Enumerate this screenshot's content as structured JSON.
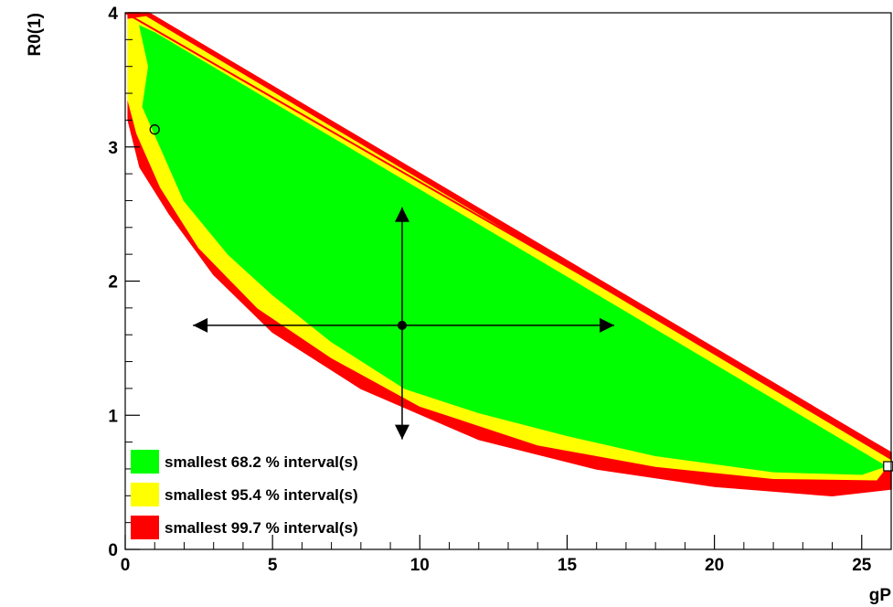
{
  "chart_data": {
    "type": "contour",
    "xlabel": "gP",
    "ylabel": "R0(1)",
    "xlim": [
      0,
      26
    ],
    "ylim": [
      0,
      4
    ],
    "x_ticks": [
      "0",
      "5",
      "10",
      "15",
      "20",
      "25"
    ],
    "y_ticks": [
      "0",
      "1",
      "2",
      "3",
      "4"
    ],
    "grid": false,
    "legend_position": "bottom-left",
    "colors": {
      "interval_68": "#00ff00",
      "interval_95": "#ffff00",
      "interval_99": "#ff0000"
    },
    "regions": [
      {
        "name": "smallest 99.7 % interval(s)",
        "color": "#ff0000",
        "polygon": [
          [
            0.1,
            4.0
          ],
          [
            0.8,
            4.0
          ],
          [
            26,
            0.72
          ],
          [
            26,
            0.45
          ],
          [
            24,
            0.4
          ],
          [
            20,
            0.47
          ],
          [
            16,
            0.6
          ],
          [
            12,
            0.82
          ],
          [
            8,
            1.2
          ],
          [
            5,
            1.62
          ],
          [
            3,
            2.05
          ],
          [
            1.5,
            2.5
          ],
          [
            0.5,
            2.85
          ],
          [
            0.1,
            3.2
          ]
        ]
      },
      {
        "name": "smallest 95.4 % interval(s)",
        "color": "#ffff00",
        "polygon": [
          [
            0.1,
            3.95
          ],
          [
            0.7,
            3.97
          ],
          [
            26,
            0.66
          ],
          [
            25.5,
            0.52
          ],
          [
            22,
            0.53
          ],
          [
            18,
            0.62
          ],
          [
            14,
            0.78
          ],
          [
            10,
            1.07
          ],
          [
            7,
            1.43
          ],
          [
            4.5,
            1.8
          ],
          [
            2.5,
            2.25
          ],
          [
            1.2,
            2.7
          ],
          [
            0.4,
            3.1
          ],
          [
            0.1,
            3.35
          ]
        ]
      },
      {
        "name": "smallest 68.2 % interval(s)",
        "color": "#00ff00",
        "polygon": [
          [
            0.5,
            3.9
          ],
          [
            1,
            3.85
          ],
          [
            25.8,
            0.62
          ],
          [
            25,
            0.56
          ],
          [
            22,
            0.58
          ],
          [
            18,
            0.7
          ],
          [
            15,
            0.85
          ],
          [
            12,
            1.02
          ],
          [
            9.5,
            1.2
          ],
          [
            7,
            1.55
          ],
          [
            5,
            1.9
          ],
          [
            3.5,
            2.2
          ],
          [
            2,
            2.6
          ],
          [
            1.2,
            3.0
          ],
          [
            0.6,
            3.3
          ],
          [
            0.8,
            3.6
          ]
        ]
      }
    ],
    "boundary_line": {
      "x": [
        0,
        26
      ],
      "y": [
        4.0,
        0.72
      ],
      "color": "#ff0000"
    },
    "best_fit": {
      "x": 9.4,
      "y": 1.67,
      "x_err": [
        7.1,
        7.2
      ],
      "y_err": [
        0.85,
        0.88
      ]
    },
    "open_markers": [
      {
        "shape": "circle",
        "x": 1.0,
        "y": 3.13
      },
      {
        "shape": "square",
        "x": 25.9,
        "y": 0.62
      }
    ],
    "legend": [
      {
        "label": "smallest 68.2 % interval(s)",
        "color": "#00ff00"
      },
      {
        "label": "smallest 95.4 % interval(s)",
        "color": "#ffff00"
      },
      {
        "label": "smallest 99.7 % interval(s)",
        "color": "#ff0000"
      }
    ]
  }
}
